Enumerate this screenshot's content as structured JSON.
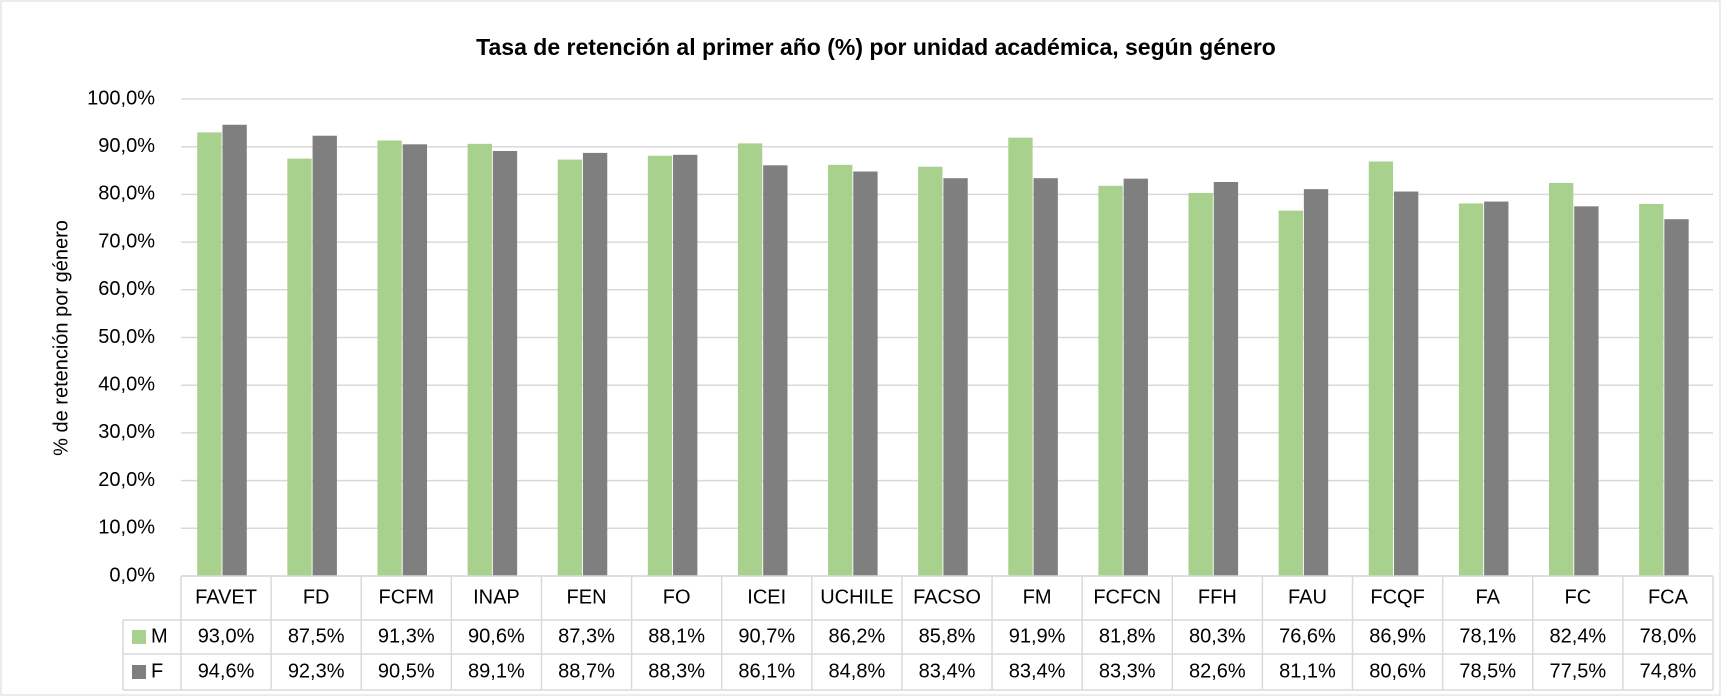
{
  "chart_data": {
    "type": "bar",
    "title": "Tasa de retención al primer año (%) por unidad académica, según género",
    "y_label": "% de retención por género",
    "categories": [
      "FAVET",
      "FD",
      "FCFM",
      "INAP",
      "FEN",
      "FO",
      "ICEI",
      "UCHILE",
      "FACSO",
      "FM",
      "FCFCN",
      "FFH",
      "FAU",
      "FCQF",
      "FA",
      "FC",
      "FCA"
    ],
    "series": [
      {
        "name": "M",
        "color": "#a9d18e",
        "values": [
          93.0,
          87.5,
          91.3,
          90.6,
          87.3,
          88.1,
          90.7,
          86.2,
          85.8,
          91.9,
          81.8,
          80.3,
          76.6,
          86.9,
          78.1,
          82.4,
          78.0
        ],
        "value_labels": [
          "93,0%",
          "87,5%",
          "91,3%",
          "90,6%",
          "87,3%",
          "88,1%",
          "90,7%",
          "86,2%",
          "85,8%",
          "91,9%",
          "81,8%",
          "80,3%",
          "76,6%",
          "86,9%",
          "78,1%",
          "82,4%",
          "78,0%"
        ]
      },
      {
        "name": "F",
        "color": "#7f7f7f",
        "values": [
          94.6,
          92.3,
          90.5,
          89.1,
          88.7,
          88.3,
          86.1,
          84.8,
          83.4,
          83.4,
          83.3,
          82.6,
          81.1,
          80.6,
          78.5,
          77.5,
          74.8
        ],
        "value_labels": [
          "94,6%",
          "92,3%",
          "90,5%",
          "89,1%",
          "88,7%",
          "88,3%",
          "86,1%",
          "84,8%",
          "83,4%",
          "83,4%",
          "83,3%",
          "82,6%",
          "81,1%",
          "80,6%",
          "78,5%",
          "77,5%",
          "74,8%"
        ]
      }
    ],
    "ylim": [
      0,
      100
    ],
    "yticks": [
      {
        "value": 0,
        "label": "0,0%"
      },
      {
        "value": 10,
        "label": "10,0%"
      },
      {
        "value": 20,
        "label": "20,0%"
      },
      {
        "value": 30,
        "label": "30,0%"
      },
      {
        "value": 40,
        "label": "40,0%"
      },
      {
        "value": 50,
        "label": "50,0%"
      },
      {
        "value": 60,
        "label": "60,0%"
      },
      {
        "value": 70,
        "label": "70,0%"
      },
      {
        "value": 80,
        "label": "80,0%"
      },
      {
        "value": 90,
        "label": "90,0%"
      },
      {
        "value": 100,
        "label": "100,0%"
      }
    ],
    "grid": true
  }
}
